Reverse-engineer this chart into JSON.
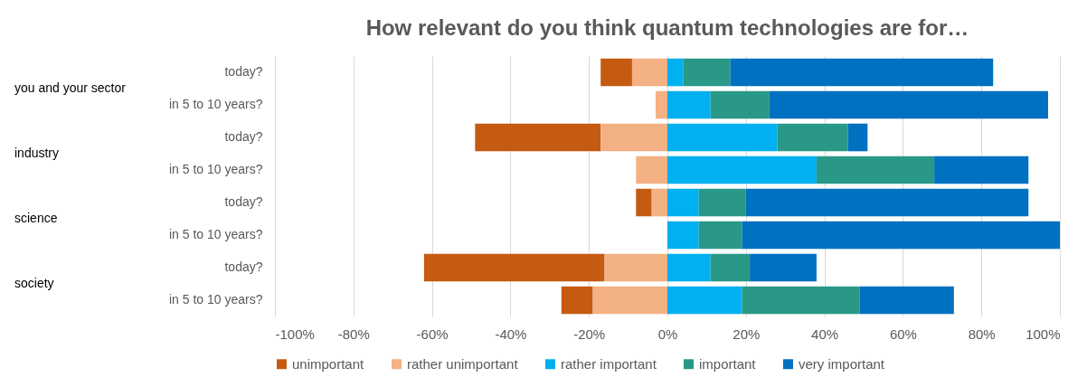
{
  "chart_data": {
    "type": "bar",
    "orientation": "horizontal",
    "stacked": true,
    "title": "How relevant do you think quantum technologies are for…",
    "categories": [
      "today?",
      "in 5 to 10 years?",
      "today?",
      "in 5 to 10 years?",
      "today?",
      "in 5 to 10 years?",
      "today?",
      "in 5 to 10 years?"
    ],
    "annotations": [
      "you and your sector",
      "industry",
      "science",
      "society"
    ],
    "series": [
      {
        "name": "unimportant",
        "color": "#c55a11",
        "values": [
          -8,
          0,
          -32,
          0,
          -4,
          0,
          -46,
          -8
        ]
      },
      {
        "name": "rather unimportant",
        "color": "#f4b183",
        "values": [
          -9,
          -3,
          -17,
          -8,
          -4,
          0,
          -16,
          -19
        ]
      },
      {
        "name": "rather important",
        "color": "#00b0f0",
        "values": [
          4,
          11,
          28,
          38,
          8,
          8,
          11,
          19
        ]
      },
      {
        "name": "important",
        "color": "#2a9886",
        "values": [
          12,
          15,
          18,
          30,
          12,
          11,
          10,
          30
        ]
      },
      {
        "name": "very important",
        "color": "#0070c0",
        "values": [
          67,
          71,
          5,
          24,
          72,
          81,
          17,
          24
        ]
      }
    ],
    "xlim": [
      -100,
      100
    ],
    "xticks": [
      {
        "value": -100,
        "label": "-100%"
      },
      {
        "value": -80,
        "label": "-80%"
      },
      {
        "value": -60,
        "label": "-60%"
      },
      {
        "value": -40,
        "label": "-40%"
      },
      {
        "value": -20,
        "label": "-20%"
      },
      {
        "value": 0,
        "label": "0%"
      },
      {
        "value": 20,
        "label": "20%"
      },
      {
        "value": 40,
        "label": "40%"
      },
      {
        "value": 60,
        "label": "60%"
      },
      {
        "value": 80,
        "label": "80%"
      },
      {
        "value": 100,
        "label": "100%"
      }
    ],
    "grid": "x",
    "legend": "bottom"
  }
}
